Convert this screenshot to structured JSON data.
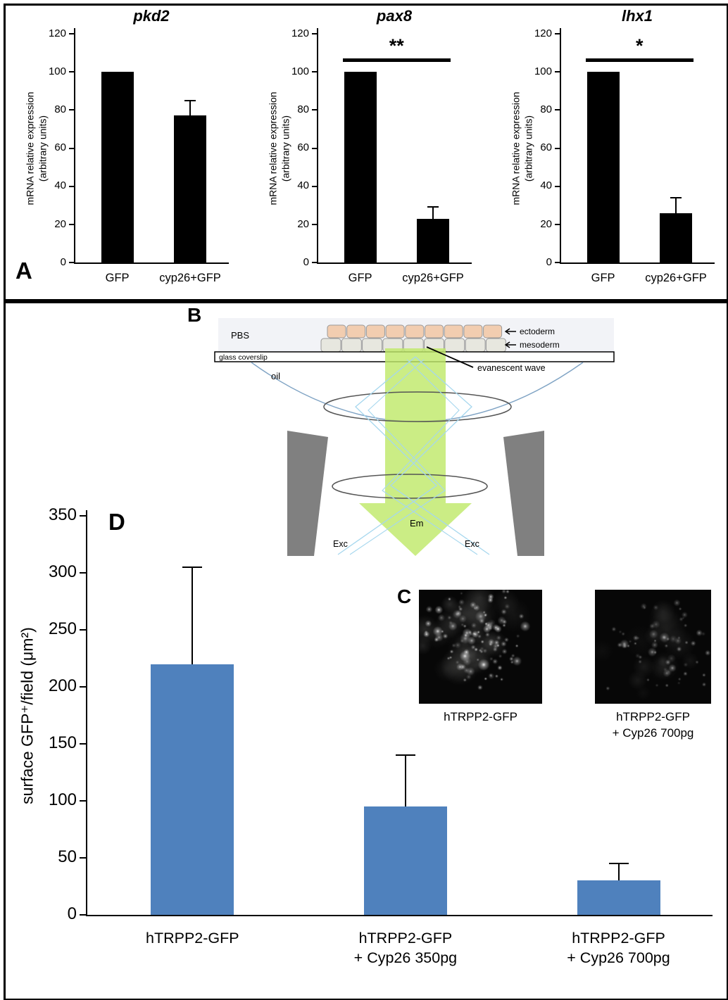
{
  "panels": {
    "a": "A",
    "b": "B",
    "c": "C",
    "d": "D"
  },
  "chart_data": [
    {
      "type": "bar",
      "panel": "A",
      "title": "pkd2",
      "categories": [
        "GFP",
        "cyp26+GFP"
      ],
      "values": [
        100,
        77
      ],
      "errors": [
        0,
        8
      ],
      "ylabel": "mRNA relative expression\n(arbitrary units)",
      "ylim": [
        0,
        120
      ],
      "ytick_step": 20,
      "bar_color": "#000000",
      "significance": null
    },
    {
      "type": "bar",
      "panel": "A",
      "title": "pax8",
      "categories": [
        "GFP",
        "cyp26+GFP"
      ],
      "values": [
        100,
        23
      ],
      "errors": [
        0,
        6
      ],
      "ylabel": "mRNA relative expression\n(arbitrary units)",
      "ylim": [
        0,
        120
      ],
      "ytick_step": 20,
      "bar_color": "#000000",
      "significance": {
        "label": "**",
        "y": 107
      }
    },
    {
      "type": "bar",
      "panel": "A",
      "title": "lhx1",
      "categories": [
        "GFP",
        "cyp26+GFP"
      ],
      "values": [
        100,
        26
      ],
      "errors": [
        0,
        8
      ],
      "ylabel": "mRNA relative expression\n(arbitrary units)",
      "ylim": [
        0,
        120
      ],
      "ytick_step": 20,
      "bar_color": "#000000",
      "significance": {
        "label": "*",
        "y": 107
      }
    },
    {
      "type": "bar",
      "panel": "D",
      "title": "",
      "categories": [
        "hTRPP2-GFP",
        "hTRPP2-GFP\n+ Cyp26 350pg",
        "hTRPP2-GFP\n+ Cyp26 700pg"
      ],
      "values": [
        220,
        95,
        30
      ],
      "errors": [
        85,
        45,
        15
      ],
      "ylabel": "surface GFP⁺/field (μm²)",
      "ylim": [
        0,
        350
      ],
      "ytick_step": 50,
      "bar_color": "#4f81bd",
      "significance": null
    }
  ],
  "diagram": {
    "pbs": "PBS",
    "ectoderm_label": "ectoderm",
    "mesoderm_label": "mesoderm",
    "coverslip_label": "glass coverslip",
    "oil_label": "oil",
    "evanescent_label": "evanescent wave",
    "emission_label": "Em",
    "excitation_left": "Exc",
    "excitation_right": "Exc",
    "colors": {
      "ectoderm_cell": "#f2cdb0",
      "mesoderm_cell": "#e7e7df",
      "emission_green": "#bfe96a",
      "excitation_blue": "#a6d7ee",
      "objective_gray": "#808080"
    }
  },
  "micrographs": [
    {
      "label": "hTRPP2-GFP"
    },
    {
      "label": "hTRPP2-GFP\n+ Cyp26 700pg"
    }
  ]
}
